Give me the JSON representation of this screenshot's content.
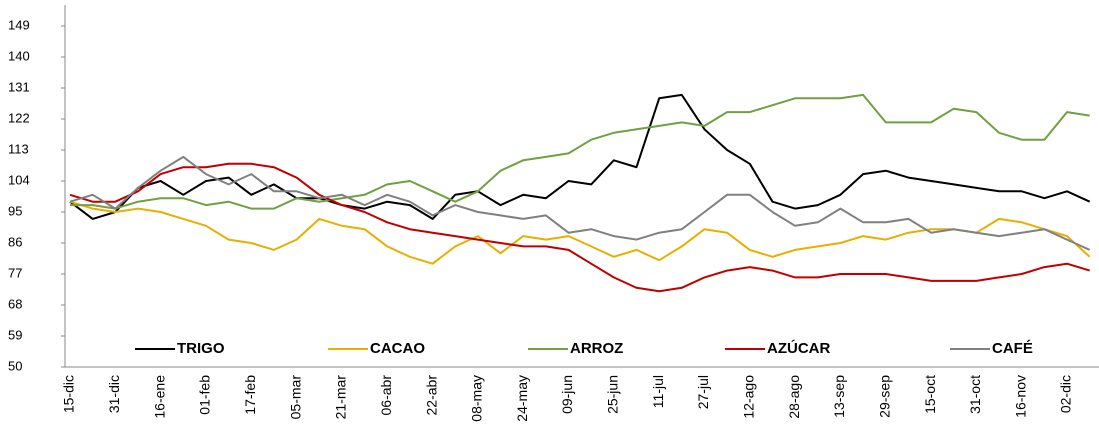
{
  "chart_data": {
    "type": "line",
    "categories": [
      "15-dic",
      null,
      "31-dic",
      null,
      "16-ene",
      null,
      "01-feb",
      null,
      "17-feb",
      null,
      "05-mar",
      null,
      "21-mar",
      null,
      "06-abr",
      null,
      "22-abr",
      null,
      "08-may",
      null,
      "24-may",
      null,
      "09-jun",
      null,
      "25-jun",
      null,
      "11-jul",
      null,
      "27-jul",
      null,
      "12-ago",
      null,
      "28-ago",
      null,
      "13-sep",
      null,
      "29-sep",
      null,
      "15-oct",
      null,
      "31-oct",
      null,
      "16-nov",
      null,
      "02-dic",
      null
    ],
    "series": [
      {
        "name": "TRIGO",
        "color": "#000000",
        "values": [
          98,
          93,
          95,
          102,
          104,
          100,
          104,
          105,
          100,
          103,
          99,
          99,
          97,
          96,
          98,
          97,
          93,
          100,
          101,
          97,
          100,
          99,
          104,
          103,
          110,
          108,
          128,
          129,
          119,
          113,
          109,
          98,
          96,
          97,
          100,
          106,
          107,
          105,
          104,
          103,
          102,
          101,
          101,
          99,
          101,
          98
        ]
      },
      {
        "name": "CACAO",
        "color": "#e6b000",
        "values": [
          98,
          96,
          95,
          96,
          95,
          93,
          91,
          87,
          86,
          84,
          87,
          93,
          91,
          90,
          85,
          82,
          80,
          85,
          88,
          83,
          88,
          87,
          88,
          85,
          82,
          84,
          81,
          85,
          90,
          89,
          84,
          82,
          84,
          85,
          86,
          88,
          87,
          89,
          90,
          90,
          89,
          93,
          92,
          90,
          88,
          82
        ]
      },
      {
        "name": "ARROZ",
        "color": "#70a040",
        "values": [
          97,
          97,
          96,
          98,
          99,
          99,
          97,
          98,
          96,
          96,
          99,
          98,
          99,
          100,
          103,
          104,
          101,
          98,
          101,
          107,
          110,
          111,
          112,
          116,
          118,
          119,
          120,
          121,
          120,
          124,
          124,
          126,
          128,
          128,
          128,
          129,
          121,
          121,
          121,
          125,
          124,
          118,
          116,
          116,
          124,
          123
        ]
      },
      {
        "name": "AZÚCAR",
        "color": "#c00000",
        "values": [
          100,
          98,
          98,
          101,
          106,
          108,
          108,
          109,
          109,
          108,
          105,
          100,
          97,
          95,
          92,
          90,
          89,
          88,
          87,
          86,
          85,
          85,
          84,
          80,
          76,
          73,
          72,
          73,
          76,
          78,
          79,
          78,
          76,
          76,
          77,
          77,
          77,
          76,
          75,
          75,
          75,
          76,
          77,
          79,
          80,
          78
        ]
      },
      {
        "name": "CAFÉ",
        "color": "#808080",
        "values": [
          98,
          100,
          96,
          102,
          107,
          111,
          106,
          103,
          106,
          101,
          101,
          99,
          100,
          97,
          100,
          98,
          94,
          97,
          95,
          94,
          93,
          94,
          89,
          90,
          88,
          87,
          89,
          90,
          95,
          100,
          100,
          95,
          91,
          92,
          96,
          92,
          92,
          93,
          89,
          90,
          89,
          88,
          89,
          90,
          87,
          84
        ]
      }
    ],
    "ylim": [
      50,
      149
    ],
    "yticks": [
      50,
      59,
      68,
      77,
      86,
      95,
      104,
      113,
      122,
      131,
      140,
      149
    ],
    "grid": false,
    "legend": "bottom"
  }
}
